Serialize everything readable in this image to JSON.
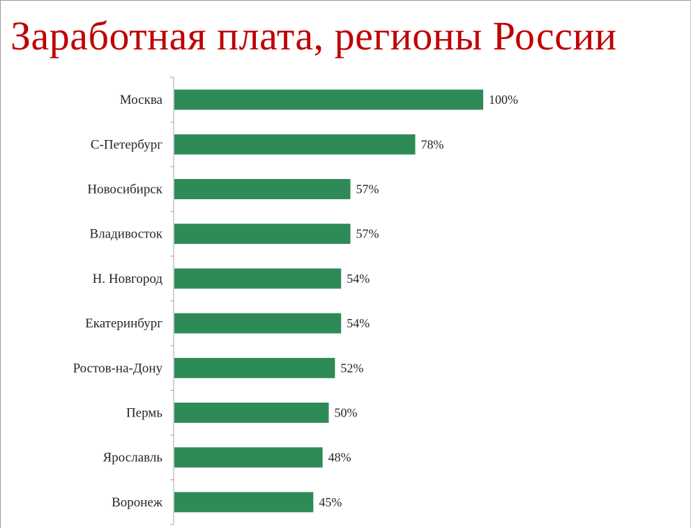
{
  "chart_data": {
    "type": "bar",
    "orientation": "horizontal",
    "title": "Заработная плата, регионы России",
    "categories": [
      "Москва",
      "С-Петербург",
      "Новосибирск",
      "Владивосток",
      "Н. Новгород",
      "Екатеринбург",
      "Ростов-на-Дону",
      "Пермь",
      "Ярославль",
      "Воронеж"
    ],
    "values": [
      100,
      78,
      57,
      57,
      54,
      54,
      52,
      50,
      48,
      45
    ],
    "data_labels": [
      "100%",
      "78%",
      "57%",
      "57%",
      "54%",
      "54%",
      "52%",
      "50%",
      "48%",
      "45%"
    ],
    "value_unit": "%",
    "xlim": [
      0,
      100
    ],
    "grid": false,
    "legend": "none",
    "colors": {
      "bar": "#2e8b57",
      "title": "#c00000",
      "axis": "#a6a6a6",
      "text": "#262626"
    }
  }
}
